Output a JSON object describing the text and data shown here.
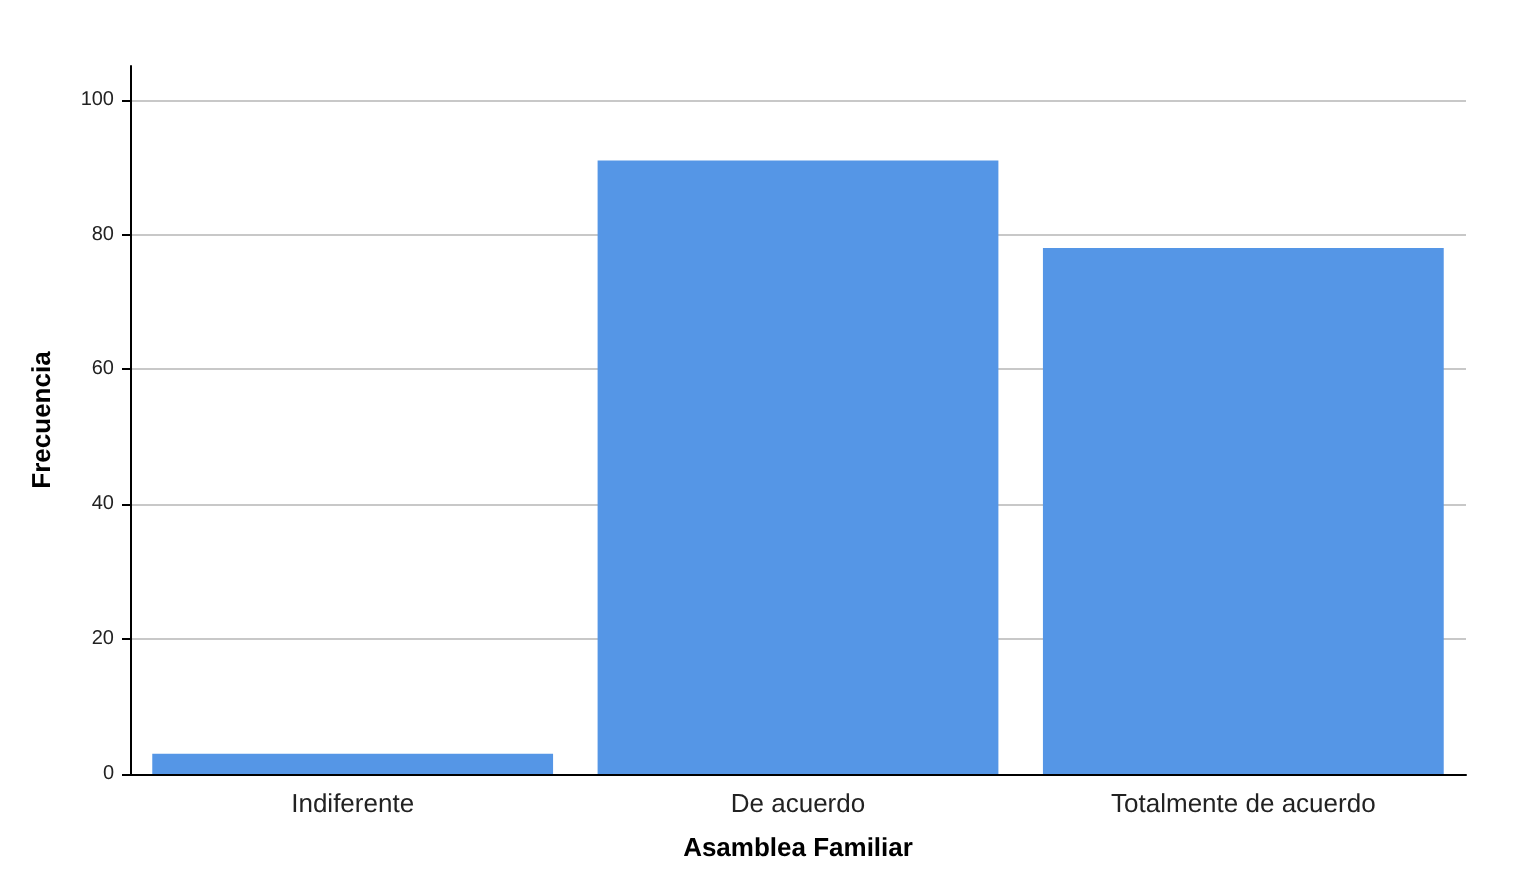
{
  "chart_data": {
    "type": "bar",
    "xlabel": "Asamblea Familiar",
    "ylabel": "Frecuencia",
    "categories": [
      "Indiferente",
      "De acuerdo",
      "Totalmente de acuerdo"
    ],
    "values": [
      3,
      91,
      78
    ],
    "color": "#5596e6",
    "ylim": [
      0,
      105
    ],
    "yticks": [
      0,
      20,
      40,
      60,
      80,
      100
    ],
    "grid": "y"
  }
}
